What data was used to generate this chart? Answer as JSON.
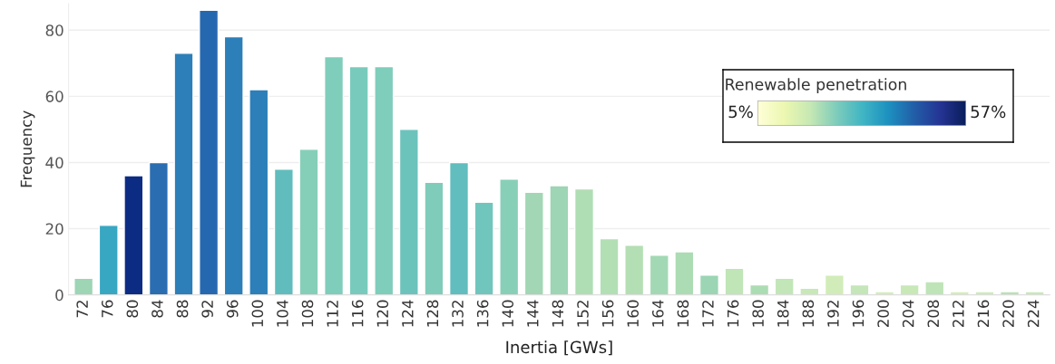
{
  "chart_data": {
    "type": "bar",
    "xlabel": "Inertia [GWs]",
    "ylabel": "Frequency",
    "clabel": "Renewable penetration",
    "categories": [
      "72",
      "76",
      "80",
      "84",
      "88",
      "92",
      "96",
      "100",
      "104",
      "108",
      "112",
      "116",
      "120",
      "124",
      "128",
      "132",
      "136",
      "140",
      "144",
      "148",
      "152",
      "156",
      "160",
      "164",
      "168",
      "172",
      "176",
      "180",
      "184",
      "188",
      "192",
      "196",
      "200",
      "204",
      "208",
      "212",
      "216",
      "220",
      "224"
    ],
    "values": [
      5,
      21,
      36,
      40,
      73,
      86,
      78,
      62,
      38,
      44,
      72,
      69,
      69,
      50,
      34,
      40,
      28,
      35,
      31,
      33,
      32,
      17,
      15,
      12,
      13,
      6,
      8,
      3,
      5,
      2,
      6,
      3,
      1,
      3,
      4,
      1,
      1,
      1,
      1
    ],
    "colors": [
      "#9dd5b5",
      "#37a7c2",
      "#0c2c84",
      "#2a6db1",
      "#2c7fb8",
      "#2668b0",
      "#2c7fb8",
      "#2c7fb8",
      "#61bdbd",
      "#85cfb8",
      "#7fcdbb",
      "#78cabc",
      "#7fcdbb",
      "#6cc3bc",
      "#80ccba",
      "#61bdbe",
      "#70c6bc",
      "#88cfb8",
      "#a2d6b4",
      "#9dd5b5",
      "#b0deb4",
      "#b3dfb4",
      "#b4dfb4",
      "#a3d8b4",
      "#acdcb4",
      "#9bd5b4",
      "#c0e5b6",
      "#acdcb4",
      "#c2e6b7",
      "#c8e8b8",
      "#d1ecb8",
      "#c4e6b8",
      "#d3edb9",
      "#c8e8b8",
      "#bfe4b7",
      "#d3edb9",
      "#cdeab8",
      "#b8e1b5",
      "#c8e8b8"
    ],
    "ylim": [
      0,
      88
    ],
    "yticks": [
      0,
      20,
      40,
      60,
      80
    ],
    "grid": "y",
    "annotations": [
      "5%",
      "57%"
    ]
  }
}
